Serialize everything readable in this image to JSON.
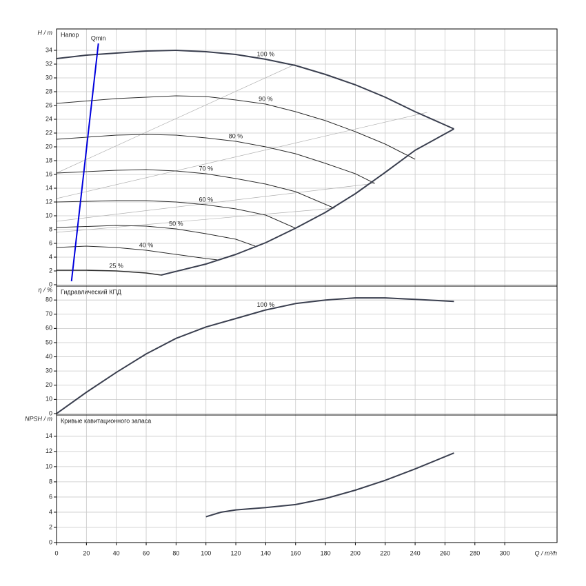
{
  "chart_data": [
    {
      "type": "line",
      "title": "Напор",
      "y_label": "H / m",
      "xlim": [
        0,
        335
      ],
      "xticks": [
        0,
        20,
        40,
        60,
        80,
        100,
        120,
        140,
        160,
        180,
        200,
        220,
        240,
        260,
        280,
        300
      ],
      "ylim": [
        -0.2,
        37.1
      ],
      "yticks": [
        0,
        2,
        4,
        6,
        8,
        10,
        12,
        14,
        16,
        18,
        20,
        22,
        24,
        26,
        28,
        30,
        32,
        34
      ],
      "grid": true,
      "series": [
        {
          "color": "#b0b0b0",
          "line_width": 0.7,
          "x": [
            0,
            160
          ],
          "values": [
            16.2,
            32
          ]
        },
        {
          "color": "#b0b0b0",
          "line_width": 0.7,
          "x": [
            0,
            248
          ],
          "values": [
            12.5,
            25
          ]
        },
        {
          "color": "#b0b0b0",
          "line_width": 0.7,
          "x": [
            0,
            213
          ],
          "values": [
            9.2,
            14.7
          ]
        },
        {
          "color": "#b0b0b0",
          "line_width": 0.7,
          "x": [
            0,
            186
          ],
          "values": [
            7.6,
            11.1
          ]
        },
        {
          "name": "100 %",
          "color": "#3a3f4f",
          "line_width": 2,
          "x": [
            0,
            20,
            40,
            60,
            80,
            100,
            120,
            140,
            160,
            180,
            200,
            220,
            240,
            266
          ],
          "values": [
            32.8,
            33.3,
            33.6,
            33.9,
            34,
            33.8,
            33.4,
            32.7,
            31.8,
            30.5,
            29,
            27.2,
            25.1,
            22.6
          ]
        },
        {
          "name": "90 %",
          "color": "#2a2a2a",
          "line_width": 1,
          "x": [
            0,
            40,
            80,
            100,
            120,
            140,
            160,
            180,
            200,
            220,
            240
          ],
          "values": [
            26.3,
            27,
            27.4,
            27.3,
            26.8,
            26.2,
            25.1,
            23.8,
            22.2,
            20.4,
            18.2
          ]
        },
        {
          "name": "80 %",
          "color": "#2a2a2a",
          "line_width": 1,
          "x": [
            0,
            40,
            60,
            80,
            100,
            120,
            140,
            160,
            180,
            200,
            213
          ],
          "values": [
            21.1,
            21.7,
            21.8,
            21.7,
            21.3,
            20.8,
            20,
            19,
            17.6,
            16.1,
            14.7
          ]
        },
        {
          "name": "70 %",
          "color": "#2a2a2a",
          "line_width": 1,
          "x": [
            0,
            40,
            60,
            80,
            100,
            120,
            140,
            160,
            186
          ],
          "values": [
            16.2,
            16.6,
            16.7,
            16.5,
            16.1,
            15.4,
            14.6,
            13.5,
            11.1
          ]
        },
        {
          "name": "60 %",
          "color": "#2a2a2a",
          "line_width": 1,
          "x": [
            0,
            40,
            60,
            80,
            100,
            120,
            140,
            160
          ],
          "values": [
            12,
            12.2,
            12.2,
            12,
            11.6,
            11,
            10.1,
            8.2
          ]
        },
        {
          "name": "50 %",
          "color": "#2a2a2a",
          "line_width": 1,
          "x": [
            0,
            40,
            60,
            80,
            100,
            120,
            133
          ],
          "values": [
            8.3,
            8.6,
            8.5,
            8.1,
            7.4,
            6.6,
            5.6
          ]
        },
        {
          "name": "40 %",
          "color": "#2a2a2a",
          "line_width": 1,
          "x": [
            0,
            20,
            40,
            60,
            80,
            100,
            108
          ],
          "values": [
            5.4,
            5.6,
            5.4,
            5,
            4.4,
            3.8,
            3.6
          ]
        },
        {
          "name": "25 %",
          "color": "#2a2a2a",
          "line_width": 1.6,
          "x": [
            0,
            20,
            40,
            60,
            70
          ],
          "values": [
            2.1,
            2.1,
            2,
            1.7,
            1.4
          ]
        },
        {
          "color": "#3a3f4f",
          "line_width": 2,
          "x": [
            70,
            100,
            120,
            140,
            160,
            180,
            200,
            220,
            240,
            266
          ],
          "values": [
            1.4,
            3,
            4.4,
            6.1,
            8.2,
            10.5,
            13.2,
            16.3,
            19.5,
            22.6
          ]
        },
        {
          "name": "Qmin",
          "color": "#0000dd",
          "line_width": 2,
          "x": [
            10,
            28
          ],
          "values": [
            0.5,
            35
          ]
        }
      ]
    },
    {
      "type": "line",
      "title": "Гидравлический КПД",
      "y_label": "η / %",
      "xlim": [
        0,
        335
      ],
      "xticks": [
        0,
        20,
        40,
        60,
        80,
        100,
        120,
        140,
        160,
        180,
        200,
        220,
        240,
        260,
        280,
        300
      ],
      "ylim": [
        -1,
        89.8
      ],
      "yticks": [
        0,
        10,
        20,
        30,
        40,
        50,
        60,
        70,
        80
      ],
      "grid": true,
      "series": [
        {
          "name": "100 %",
          "color": "#3a3f4f",
          "line_width": 2,
          "x": [
            0,
            20,
            40,
            60,
            80,
            100,
            120,
            140,
            160,
            180,
            200,
            220,
            240,
            266
          ],
          "values": [
            0,
            15,
            29,
            42,
            53,
            61,
            67,
            73,
            77.5,
            80,
            81.5,
            81.5,
            80.5,
            79
          ]
        }
      ]
    },
    {
      "type": "line",
      "title": "Кривые кавитационного запаса",
      "y_label": "NPSH / m",
      "x_label": "Q / m³/h",
      "xlim": [
        0,
        335
      ],
      "xticks": [
        0,
        20,
        40,
        60,
        80,
        100,
        120,
        140,
        160,
        180,
        200,
        220,
        240,
        260,
        280,
        300
      ],
      "ylim": [
        0,
        16.8
      ],
      "yticks": [
        0,
        2,
        4,
        6,
        8,
        10,
        12,
        14
      ],
      "grid": true,
      "series": [
        {
          "color": "#3a3f4f",
          "line_width": 2,
          "x": [
            100,
            110,
            120,
            140,
            160,
            180,
            200,
            220,
            240,
            266
          ],
          "values": [
            3.4,
            4,
            4.3,
            4.6,
            5,
            5.8,
            6.9,
            8.2,
            9.7,
            11.8
          ]
        }
      ]
    }
  ]
}
